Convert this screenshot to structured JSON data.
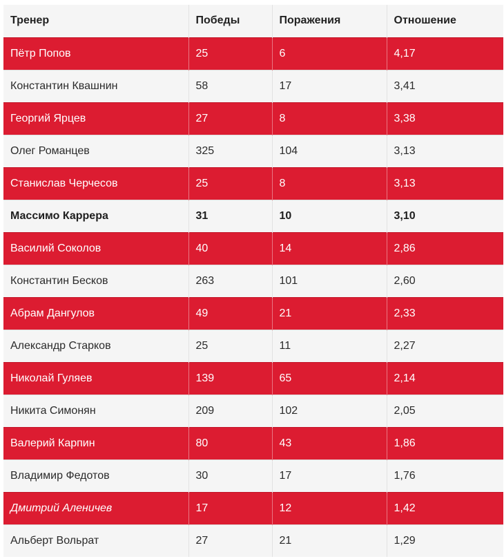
{
  "table": {
    "headers": [
      "Тренер",
      "Победы",
      "Поражения",
      "Отношение"
    ],
    "accent_color": "#dc1c31",
    "rows": [
      {
        "coach": "Пётр Попов",
        "wins": "25",
        "losses": "6",
        "ratio": "4,17",
        "style": "red"
      },
      {
        "coach": "Константин Квашнин",
        "wins": "58",
        "losses": "17",
        "ratio": "3,41",
        "style": "plain"
      },
      {
        "coach": "Георгий Ярцев",
        "wins": "27",
        "losses": "8",
        "ratio": "3,38",
        "style": "red"
      },
      {
        "coach": "Олег Романцев",
        "wins": "325",
        "losses": "104",
        "ratio": "3,13",
        "style": "plain"
      },
      {
        "coach": "Станислав Черчесов",
        "wins": "25",
        "losses": "8",
        "ratio": "3,13",
        "style": "red"
      },
      {
        "coach": "Массимо Каррера",
        "wins": "31",
        "losses": "10",
        "ratio": "3,10",
        "style": "bold"
      },
      {
        "coach": "Василий Соколов",
        "wins": "40",
        "losses": "14",
        "ratio": "2,86",
        "style": "red"
      },
      {
        "coach": "Константин Бесков",
        "wins": "263",
        "losses": "101",
        "ratio": "2,60",
        "style": "plain"
      },
      {
        "coach": "Абрам Дангулов",
        "wins": "49",
        "losses": "21",
        "ratio": "2,33",
        "style": "red"
      },
      {
        "coach": "Александр Старков",
        "wins": "25",
        "losses": "11",
        "ratio": "2,27",
        "style": "plain"
      },
      {
        "coach": "Николай Гуляев",
        "wins": "139",
        "losses": "65",
        "ratio": "2,14",
        "style": "red"
      },
      {
        "coach": "Никита Симонян",
        "wins": "209",
        "losses": "102",
        "ratio": "2,05",
        "style": "plain"
      },
      {
        "coach": "Валерий Карпин",
        "wins": "80",
        "losses": "43",
        "ratio": "1,86",
        "style": "red"
      },
      {
        "coach": "Владимир Федотов",
        "wins": "30",
        "losses": "17",
        "ratio": "1,76",
        "style": "plain"
      },
      {
        "coach": "Дмитрий Аленичев",
        "wins": "17",
        "losses": "12",
        "ratio": "1,42",
        "style": "red-italic"
      },
      {
        "coach": "Альберт Вольрат",
        "wins": "27",
        "losses": "21",
        "ratio": "1,29",
        "style": "plain"
      }
    ]
  }
}
